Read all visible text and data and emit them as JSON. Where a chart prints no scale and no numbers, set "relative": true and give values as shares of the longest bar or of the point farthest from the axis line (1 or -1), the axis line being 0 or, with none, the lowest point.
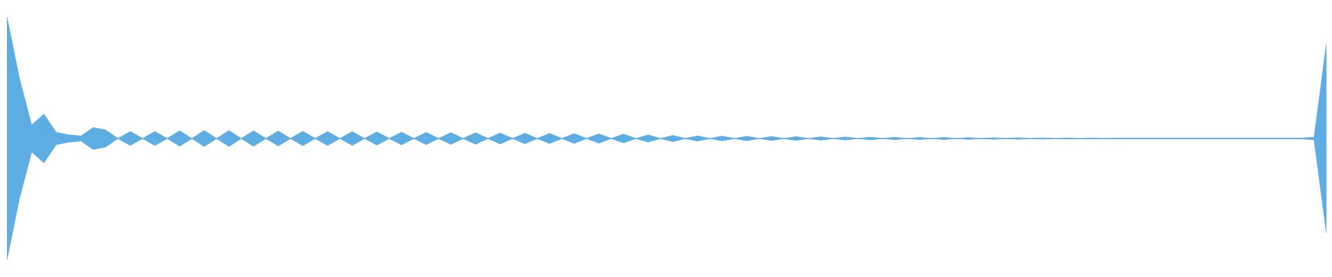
{
  "chart_data": {
    "type": "area",
    "relative": true,
    "grid": false,
    "legend": false,
    "tick_labels": false,
    "categories": [
      null,
      null,
      null,
      null,
      null,
      null,
      null,
      null,
      null,
      null,
      null,
      null,
      null,
      null,
      null,
      null,
      null,
      null,
      null,
      null,
      null,
      null,
      null,
      null,
      null,
      null,
      null,
      null,
      null,
      null,
      null,
      null,
      null,
      null,
      null,
      null,
      null,
      null,
      null,
      null,
      null,
      null,
      null,
      null,
      null,
      null,
      null,
      null,
      null,
      null,
      null,
      null,
      null,
      null,
      null,
      null,
      null,
      null,
      null,
      null,
      null,
      null,
      null,
      null,
      null,
      null,
      null,
      null,
      null,
      null,
      null,
      null,
      null,
      null,
      null,
      null,
      null,
      null,
      null,
      null,
      null,
      null,
      null,
      null,
      null,
      null,
      null,
      null,
      null,
      null,
      null,
      null,
      null,
      null,
      null,
      null,
      null,
      null,
      null,
      null,
      null,
      null,
      null,
      null,
      null,
      null,
      null,
      null
    ],
    "series": [
      {
        "color": "#5dade2",
        "values": [
          1,
          0.5,
          0.11,
          0.2,
          0.05,
          0.03,
          0.02,
          0.09,
          0.07,
          0,
          0.057,
          0,
          0.057,
          0,
          0.063,
          0,
          0.066,
          0,
          0.065,
          0,
          0.063,
          0,
          0.061,
          0,
          0.059,
          0,
          0.057,
          0,
          0.056,
          0,
          0.054,
          0,
          0.052,
          0,
          0.05,
          0,
          0.048,
          0,
          0.047,
          0,
          0.045,
          0,
          0.043,
          0,
          0.041,
          0,
          0.04,
          0,
          0.038,
          0,
          0.036,
          0,
          0.029,
          0,
          0.025,
          0,
          0.021,
          0,
          0.019,
          0,
          0.018,
          0,
          0.016,
          0,
          0.015,
          0,
          0.013,
          0,
          0.012,
          0,
          0.01,
          0,
          0.009,
          0,
          0.008,
          0,
          0.008,
          0,
          0.007,
          0,
          0.006,
          0,
          0.006,
          0,
          0.005,
          0,
          0.004,
          0,
          0.004,
          0,
          0.003,
          0.003,
          0.003,
          0.003,
          0.003,
          0.003,
          0.003,
          0.003,
          0.003,
          0.003,
          0.003,
          0.003,
          0.003,
          0.003,
          0.003,
          0.003,
          0.01,
          0.78
        ]
      },
      {
        "color": "#5eaee3",
        "values": [
          -1,
          -0.5,
          -0.11,
          -0.2,
          -0.05,
          -0.03,
          -0.02,
          -0.09,
          -0.07,
          0,
          -0.057,
          0,
          -0.057,
          0,
          -0.063,
          0,
          -0.066,
          0,
          -0.065,
          0,
          -0.063,
          0,
          -0.061,
          0,
          -0.059,
          0,
          -0.057,
          0,
          -0.056,
          0,
          -0.054,
          0,
          -0.052,
          0,
          -0.05,
          0,
          -0.048,
          0,
          -0.047,
          0,
          -0.045,
          0,
          -0.043,
          0,
          -0.041,
          0,
          -0.04,
          0,
          -0.038,
          0,
          -0.036,
          0,
          -0.029,
          0,
          -0.025,
          0,
          -0.021,
          0,
          -0.019,
          0,
          -0.018,
          0,
          -0.016,
          0,
          -0.015,
          0,
          -0.013,
          0,
          -0.012,
          0,
          -0.01,
          0,
          -0.009,
          0,
          -0.008,
          0,
          -0.008,
          0,
          -0.007,
          0,
          -0.006,
          0,
          -0.006,
          0,
          -0.005,
          0,
          -0.004,
          0,
          -0.004,
          0,
          -0.003,
          -0.003,
          -0.003,
          -0.003,
          -0.003,
          -0.003,
          -0.003,
          -0.003,
          -0.003,
          -0.003,
          -0.003,
          -0.003,
          -0.003,
          -0.003,
          -0.003,
          -0.003,
          -0.01,
          -0.78
        ]
      }
    ]
  }
}
